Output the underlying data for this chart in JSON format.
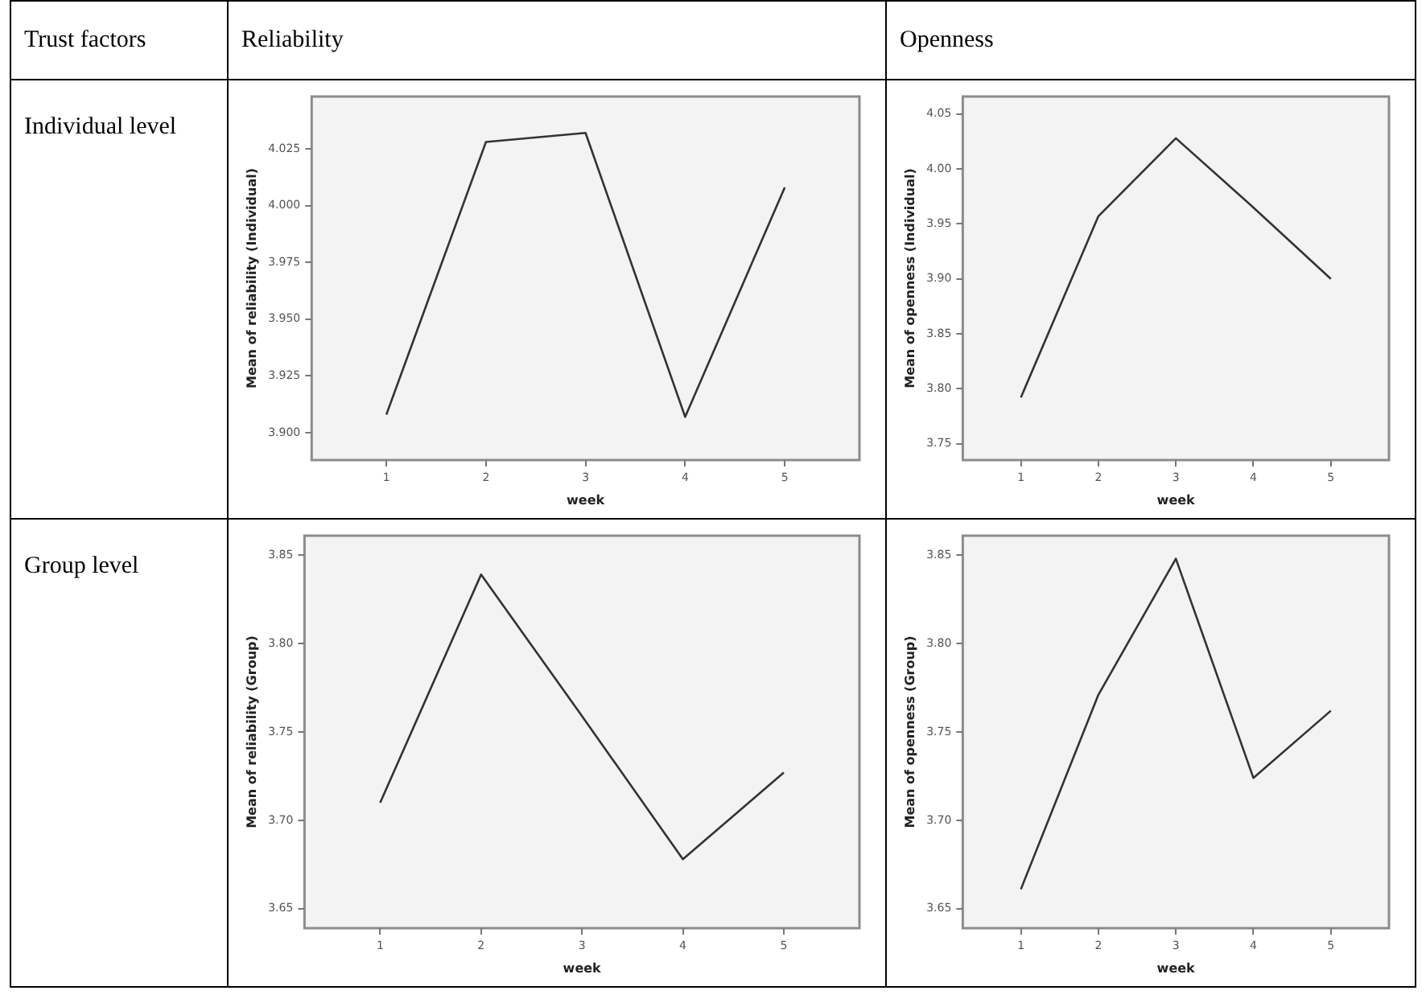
{
  "chart_data": [
    {
      "type": "other",
      "annotations": [
        "Trust factors",
        "Reliability",
        "Openness",
        "Individual level",
        "Group level"
      ]
    },
    {
      "type": "line",
      "xlabel": "week",
      "ylabel": "Mean of reliability (Individual)",
      "x": [
        1,
        2,
        3,
        4,
        5
      ],
      "color": "#333333",
      "values": [
        3.908,
        4.028,
        4.032,
        3.907,
        4.008
      ],
      "xlim": [
        0.25,
        5.75
      ],
      "xticks": [
        1,
        2,
        3,
        4,
        5
      ],
      "ylim": [
        3.888,
        4.048
      ],
      "yticks": [
        {
          "value": 3.9,
          "label": "3.900"
        },
        {
          "value": 3.925,
          "label": "3.925"
        },
        {
          "value": 3.95,
          "label": "3.950"
        },
        {
          "value": 3.975,
          "label": "3.975"
        },
        {
          "value": 4.0,
          "label": "4.000"
        },
        {
          "value": 4.025,
          "label": "4.025"
        }
      ],
      "grid": false,
      "marker": "none"
    },
    {
      "type": "line",
      "xlabel": "week",
      "ylabel": "Mean of openness (Individual)",
      "x": [
        1,
        2,
        3,
        4,
        5
      ],
      "color": "#333333",
      "values": [
        3.792,
        3.957,
        4.028,
        3.965,
        3.9
      ],
      "xlim": [
        0.25,
        5.75
      ],
      "xticks": [
        1,
        2,
        3,
        4,
        5
      ],
      "ylim": [
        3.735,
        4.066
      ],
      "yticks": [
        3.75,
        {
          "value": 3.8,
          "label": "3.80"
        },
        3.85,
        {
          "value": 3.9,
          "label": "3.90"
        },
        3.95,
        {
          "value": 4.0,
          "label": "4.00"
        },
        4.05
      ],
      "grid": false,
      "marker": "none"
    },
    {
      "type": "line",
      "xlabel": "week",
      "ylabel": "Mean of reliability (Group)",
      "x": [
        1,
        2,
        3,
        4,
        5
      ],
      "color": "#333333",
      "values": [
        3.71,
        3.839,
        3.759,
        3.678,
        3.727
      ],
      "xlim": [
        0.25,
        5.75
      ],
      "xticks": [
        1,
        2,
        3,
        4,
        5
      ],
      "ylim": [
        3.639,
        3.861
      ],
      "yticks": [
        3.65,
        {
          "value": 3.7,
          "label": "3.70"
        },
        3.75,
        {
          "value": 3.8,
          "label": "3.80"
        },
        3.85
      ],
      "grid": false,
      "marker": "none"
    },
    {
      "type": "line",
      "xlabel": "week",
      "ylabel": "Mean of openness (Group)",
      "x": [
        1,
        2,
        3,
        4,
        5
      ],
      "color": "#333333",
      "values": [
        3.661,
        3.771,
        3.848,
        3.724,
        3.762
      ],
      "xlim": [
        0.25,
        5.75
      ],
      "xticks": [
        1,
        2,
        3,
        4,
        5
      ],
      "ylim": [
        3.639,
        3.861
      ],
      "yticks": [
        3.65,
        {
          "value": 3.7,
          "label": "3.70"
        },
        3.75,
        {
          "value": 3.8,
          "label": "3.80"
        },
        3.85
      ],
      "grid": false,
      "marker": "none"
    }
  ]
}
